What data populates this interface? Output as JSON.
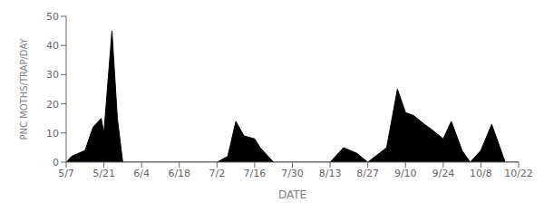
{
  "chart_data": {
    "type": "area",
    "x": [
      0,
      2,
      7,
      10,
      13,
      14,
      17,
      19,
      21,
      25,
      28,
      28,
      35,
      42,
      42,
      56,
      56,
      60,
      63,
      66,
      70,
      72,
      77,
      80,
      84,
      84,
      98,
      98,
      103,
      108,
      112,
      112,
      119,
      123,
      126,
      129,
      133,
      136,
      140,
      143,
      147,
      150,
      154,
      158,
      163,
      168
    ],
    "values": [
      0,
      2,
      4,
      12,
      15,
      10,
      45,
      15,
      0,
      0,
      0,
      0,
      0,
      0,
      0,
      0,
      0,
      2,
      14,
      9,
      8,
      5,
      0,
      0,
      0,
      0,
      0,
      0,
      5,
      3,
      0,
      0,
      5,
      25,
      17,
      16,
      13,
      11,
      8,
      14,
      4,
      0,
      4,
      13,
      0,
      0
    ],
    "color": "#000000",
    "x_label": "DATE",
    "y_label": "PNC MOTHS/TRAP/DAY",
    "xlim": [
      0,
      168
    ],
    "xticks": [
      {
        "value": 0,
        "label": "5/7"
      },
      {
        "value": 14,
        "label": "5/21"
      },
      {
        "value": 28,
        "label": "6/4"
      },
      {
        "value": 42,
        "label": "6/18"
      },
      {
        "value": 56,
        "label": "7/2"
      },
      {
        "value": 70,
        "label": "7/16"
      },
      {
        "value": 84,
        "label": "7/30"
      },
      {
        "value": 98,
        "label": "8/13"
      },
      {
        "value": 112,
        "label": "8/27"
      },
      {
        "value": 126,
        "label": "9/10"
      },
      {
        "value": 140,
        "label": "9/24"
      },
      {
        "value": 154,
        "label": "10/8"
      },
      {
        "value": 168,
        "label": "10/22"
      }
    ],
    "ylim": [
      0,
      50
    ],
    "yticks": [
      0,
      10,
      20,
      30,
      40,
      50
    ]
  }
}
